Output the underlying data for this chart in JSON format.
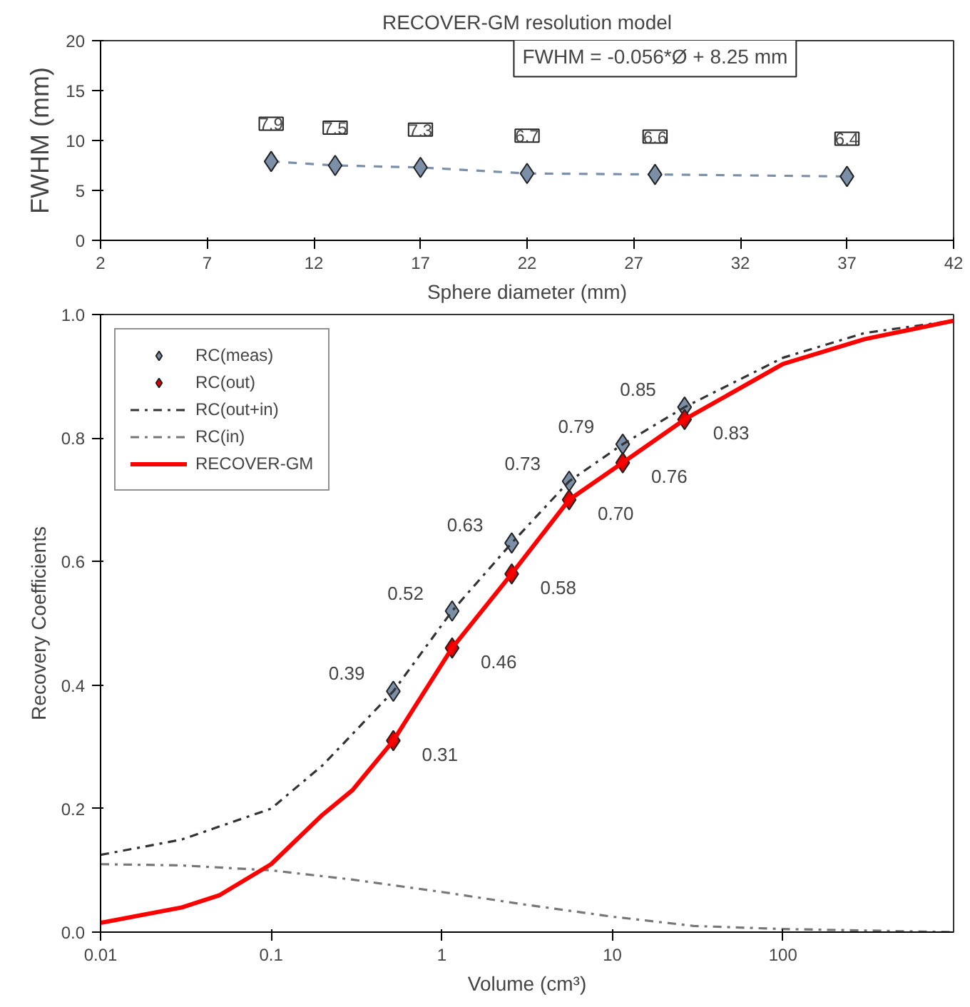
{
  "chart_data": [
    {
      "type": "line",
      "title": "RECOVER-GM resolution model",
      "xlabel": "Sphere diameter (mm)",
      "ylabel": "FWHM (mm)",
      "xlim": [
        2,
        42
      ],
      "xticks": [
        2,
        7,
        12,
        17,
        22,
        27,
        32,
        37,
        42
      ],
      "ylim": [
        0,
        20
      ],
      "yticks": [
        0,
        5,
        10,
        15,
        20
      ],
      "grid": false,
      "legend": false,
      "marker": "diamond",
      "line_style": "dashed",
      "data_labels": true,
      "annotations": [
        "FWHM = -0.056*Ø + 8.25 mm"
      ],
      "series": [
        {
          "color": "#7b8fa8",
          "x": [
            10,
            13,
            17,
            22,
            28,
            37
          ],
          "values": [
            7.9,
            7.5,
            7.3,
            6.7,
            6.6,
            6.4
          ]
        }
      ]
    },
    {
      "type": "line",
      "xlabel": "Volume (cm³)",
      "ylabel": "Recovery Coefficients",
      "log": "x",
      "xlim": [
        0.01,
        1000
      ],
      "xticks": [
        0.01,
        0.1,
        1,
        10,
        100
      ],
      "ylim": [
        0,
        1
      ],
      "yticks": [
        {
          "value": 0,
          "label": "0.0"
        },
        0.2,
        0.4,
        0.6,
        0.8,
        {
          "value": 1,
          "label": "1.0"
        }
      ],
      "grid": false,
      "legend": "top left",
      "series": [
        {
          "name": "RC(meas)",
          "type": "scatter",
          "marker": "diamond",
          "data_labels": true,
          "color": "#7b8fa8",
          "x": [
            0.52,
            1.15,
            2.57,
            5.58,
            11.5,
            26.5
          ],
          "values": [
            0.39,
            0.52,
            0.63,
            0.73,
            0.79,
            0.85
          ]
        },
        {
          "name": "RC(out)",
          "type": "scatter",
          "marker": "diamond",
          "value_labels": [
            "0.31",
            "0.46",
            "0.58",
            "0.70",
            "0.76",
            "0.83"
          ],
          "color": "#e00000",
          "x": [
            0.52,
            1.15,
            2.57,
            5.58,
            11.5,
            26.5
          ],
          "values": [
            0.31,
            0.46,
            0.58,
            0.7,
            0.76,
            0.83
          ]
        },
        {
          "name": "RC(out+in)",
          "type": "line",
          "line_style": "dashed",
          "color": "#333333",
          "x": [
            0.01,
            0.03,
            0.1,
            0.2,
            0.52,
            1.15,
            2.57,
            5.58,
            11.5,
            26.5,
            100,
            300,
            1000
          ],
          "values": [
            0.125,
            0.15,
            0.2,
            0.27,
            0.39,
            0.52,
            0.63,
            0.73,
            0.79,
            0.85,
            0.93,
            0.97,
            0.99
          ]
        },
        {
          "name": "RC(in)",
          "type": "line",
          "line_style": "dashed",
          "color": "#777777",
          "x": [
            0.01,
            0.03,
            0.1,
            0.3,
            1,
            3,
            10,
            30,
            100,
            1000
          ],
          "values": [
            0.11,
            0.108,
            0.1,
            0.085,
            0.065,
            0.045,
            0.025,
            0.01,
            0.005,
            0
          ]
        },
        {
          "name": "RECOVER-GM",
          "type": "line",
          "line_style": "solid",
          "color": "#ff0000",
          "x": [
            0.01,
            0.03,
            0.05,
            0.1,
            0.2,
            0.3,
            0.52,
            1.15,
            2.57,
            5.58,
            11.5,
            26.5,
            100,
            300,
            1000
          ],
          "values": [
            0.015,
            0.04,
            0.06,
            0.11,
            0.19,
            0.23,
            0.31,
            0.46,
            0.58,
            0.7,
            0.76,
            0.83,
            0.92,
            0.96,
            0.99
          ]
        }
      ]
    }
  ]
}
